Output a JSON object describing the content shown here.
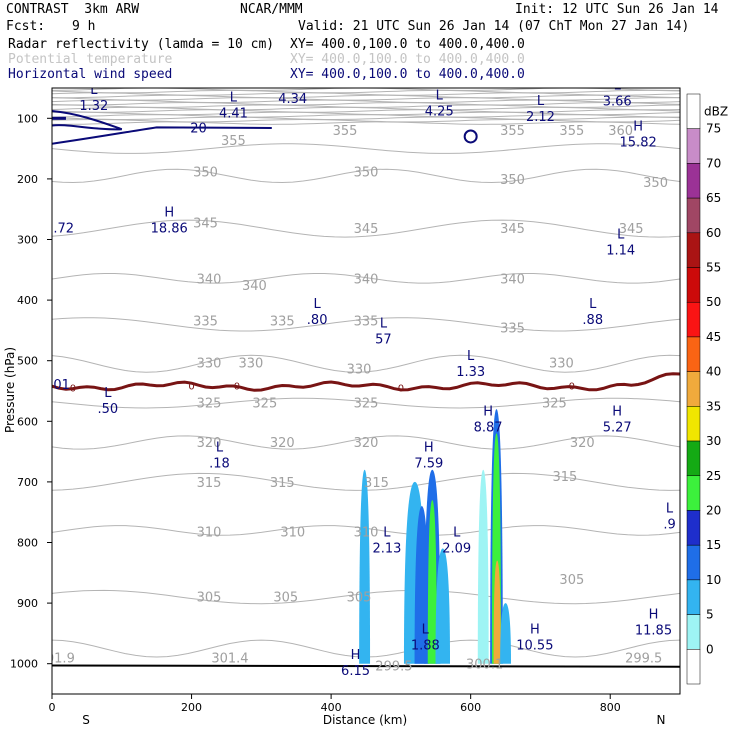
{
  "header": {
    "left_title": "CONTRAST  3km ARW",
    "center_title": "NCAR/MMM",
    "init": "Init: 12 UTC Sun 26 Jan 14",
    "fcst_label": "Fcst:",
    "fcst_value": "9 h",
    "valid": "Valid: 21 UTC Sun 26 Jan 14 (07 ChT Mon 27 Jan 14)",
    "fields": [
      {
        "name": "Radar reflectivity (lamda = 10 cm)",
        "xy": "XY= 400.0,100.0 to 400.0,400.0"
      },
      {
        "name": "Potential temperature",
        "xy": "XY= 400.0,100.0 to 400.0,400.0"
      },
      {
        "name": "Horizontal wind speed",
        "xy": "XY= 400.0,100.0 to 400.0,400.0"
      }
    ]
  },
  "colorbar": {
    "unit": "dBZ",
    "levels": [
      0,
      5,
      10,
      15,
      20,
      25,
      30,
      35,
      40,
      45,
      50,
      55,
      60,
      65,
      70,
      75
    ],
    "colors": [
      "#ffffff",
      "#9ef4f4",
      "#33b4f0",
      "#1f6ee8",
      "#1e2ecc",
      "#3cf03c",
      "#14aa14",
      "#f0e600",
      "#f0aa3c",
      "#fa6414",
      "#fa1414",
      "#cc0a0a",
      "#aa1414",
      "#a04664",
      "#9b3296",
      "#c88cc8"
    ]
  },
  "chart_data": {
    "type": "vertical-cross-section",
    "xlabel": "Distance (km)",
    "ylabel": "Pressure (hPa)",
    "xlim": [
      0,
      900
    ],
    "ylim": [
      1050,
      50
    ],
    "x_ticks": [
      0,
      200,
      400,
      600,
      800
    ],
    "y_ticks": [
      100,
      200,
      300,
      400,
      500,
      600,
      700,
      800,
      900,
      1000
    ],
    "x_end_labels": {
      "left": "S",
      "right": "N"
    },
    "theta_labels": [
      {
        "x": 260,
        "p": 136,
        "text": "355"
      },
      {
        "x": 420,
        "p": 119,
        "text": "355"
      },
      {
        "x": 660,
        "p": 119,
        "text": "355"
      },
      {
        "x": 745,
        "p": 119,
        "text": "355"
      },
      {
        "x": 815,
        "p": 119,
        "text": "360"
      },
      {
        "x": 220,
        "p": 188,
        "text": "350"
      },
      {
        "x": 450,
        "p": 188,
        "text": "350"
      },
      {
        "x": 660,
        "p": 200,
        "text": "350"
      },
      {
        "x": 865,
        "p": 205,
        "text": "350"
      },
      {
        "x": 220,
        "p": 272,
        "text": "345"
      },
      {
        "x": 450,
        "p": 281,
        "text": "345"
      },
      {
        "x": 660,
        "p": 281,
        "text": "345"
      },
      {
        "x": 830,
        "p": 281,
        "text": "345"
      },
      {
        "x": 225,
        "p": 364,
        "text": "340"
      },
      {
        "x": 290,
        "p": 375,
        "text": "340"
      },
      {
        "x": 450,
        "p": 364,
        "text": "340"
      },
      {
        "x": 660,
        "p": 364,
        "text": "340"
      },
      {
        "x": 220,
        "p": 434,
        "text": "335"
      },
      {
        "x": 330,
        "p": 434,
        "text": "335"
      },
      {
        "x": 450,
        "p": 434,
        "text": "335"
      },
      {
        "x": 660,
        "p": 445,
        "text": "335"
      },
      {
        "x": 225,
        "p": 503,
        "text": "330"
      },
      {
        "x": 285,
        "p": 503,
        "text": "330"
      },
      {
        "x": 440,
        "p": 513,
        "text": "330"
      },
      {
        "x": 730,
        "p": 503,
        "text": "330"
      },
      {
        "x": 225,
        "p": 569,
        "text": "325"
      },
      {
        "x": 305,
        "p": 569,
        "text": "325"
      },
      {
        "x": 450,
        "p": 569,
        "text": "325"
      },
      {
        "x": 720,
        "p": 569,
        "text": "325"
      },
      {
        "x": 225,
        "p": 634,
        "text": "320"
      },
      {
        "x": 330,
        "p": 634,
        "text": "320"
      },
      {
        "x": 450,
        "p": 634,
        "text": "320"
      },
      {
        "x": 760,
        "p": 634,
        "text": "320"
      },
      {
        "x": 225,
        "p": 700,
        "text": "315"
      },
      {
        "x": 330,
        "p": 700,
        "text": "315"
      },
      {
        "x": 465,
        "p": 700,
        "text": "315"
      },
      {
        "x": 735,
        "p": 690,
        "text": "315"
      },
      {
        "x": 225,
        "p": 782,
        "text": "310"
      },
      {
        "x": 345,
        "p": 782,
        "text": "310"
      },
      {
        "x": 450,
        "p": 782,
        "text": "310"
      },
      {
        "x": 225,
        "p": 889,
        "text": "305"
      },
      {
        "x": 335,
        "p": 889,
        "text": "305"
      },
      {
        "x": 440,
        "p": 889,
        "text": "305"
      },
      {
        "x": 745,
        "p": 860,
        "text": "305"
      },
      {
        "x": 255,
        "p": 990,
        "text": "301.4"
      },
      {
        "x": 12,
        "p": 990,
        "text": "01.9"
      },
      {
        "x": 490,
        "p": 1003,
        "text": "299.5"
      },
      {
        "x": 620,
        "p": 1000,
        "text": "300.1"
      },
      {
        "x": 848,
        "p": 990,
        "text": "299.5"
      }
    ],
    "extrema": [
      {
        "x": 60,
        "p": 70,
        "type": "L",
        "value": "1.32"
      },
      {
        "x": 260,
        "p": 82,
        "type": "L",
        "value": "4.41"
      },
      {
        "x": 345,
        "p": 58,
        "type": "L",
        "value": "4.34"
      },
      {
        "x": 555,
        "p": 79,
        "type": "L",
        "value": "4.25"
      },
      {
        "x": 700,
        "p": 88,
        "type": "L",
        "value": "2.12"
      },
      {
        "x": 810,
        "p": 62,
        "type": "L",
        "value": "3.66"
      },
      {
        "x": 840,
        "p": 130,
        "type": "H",
        "value": "15.82"
      },
      {
        "x": 168,
        "p": 272,
        "type": "H",
        "value": "18.86"
      },
      {
        "x": 2,
        "p": 272,
        "type": "",
        "value": ".72"
      },
      {
        "x": 815,
        "p": 308,
        "type": "L",
        "value": "1.14"
      },
      {
        "x": 380,
        "p": 423,
        "type": "L",
        "value": ".80"
      },
      {
        "x": 475,
        "p": 455,
        "type": "L",
        "value": "57"
      },
      {
        "x": 775,
        "p": 423,
        "type": "L",
        "value": ".88"
      },
      {
        "x": 600,
        "p": 509,
        "type": "L",
        "value": "1.33"
      },
      {
        "x": 2,
        "p": 530,
        "type": "",
        "value": "01"
      },
      {
        "x": 80,
        "p": 570,
        "type": "L",
        "value": ".50"
      },
      {
        "x": 625,
        "p": 600,
        "type": "H",
        "value": "8.87"
      },
      {
        "x": 810,
        "p": 600,
        "type": "H",
        "value": "5.27"
      },
      {
        "x": 240,
        "p": 660,
        "type": "L",
        "value": ".18"
      },
      {
        "x": 540,
        "p": 660,
        "type": "H",
        "value": "7.59"
      },
      {
        "x": 480,
        "p": 800,
        "type": "L",
        "value": "2.13"
      },
      {
        "x": 580,
        "p": 800,
        "type": "L",
        "value": "2.09"
      },
      {
        "x": 885,
        "p": 760,
        "type": "L",
        "value": ".9"
      },
      {
        "x": 535,
        "p": 960,
        "type": "L",
        "value": "1.88"
      },
      {
        "x": 692,
        "p": 960,
        "type": "H",
        "value": "10.55"
      },
      {
        "x": 862,
        "p": 935,
        "type": "H",
        "value": "11.85"
      },
      {
        "x": 435,
        "p": 1002,
        "type": "H",
        "value": "6.15"
      }
    ],
    "jet_contour_label": {
      "x": 210,
      "p": 115,
      "text": "20"
    },
    "freezing_level_labels": [
      {
        "x": 30,
        "p": 544,
        "text": "0"
      },
      {
        "x": 200,
        "p": 541,
        "text": "0"
      },
      {
        "x": 265,
        "p": 541,
        "text": "0"
      },
      {
        "x": 500,
        "p": 544,
        "text": "0"
      },
      {
        "x": 745,
        "p": 541,
        "text": "0"
      }
    ],
    "reflectivity_cells": [
      {
        "x": 448,
        "p_top": 680,
        "p_bot": 1000,
        "halfwidth": 6,
        "dbz": 10
      },
      {
        "x": 520,
        "p_top": 700,
        "p_bot": 1000,
        "halfwidth": 12,
        "dbz": 10
      },
      {
        "x": 530,
        "p_top": 740,
        "p_bot": 1000,
        "halfwidth": 8,
        "dbz": 15
      },
      {
        "x": 545,
        "p_top": 680,
        "p_bot": 1000,
        "halfwidth": 9,
        "dbz": 15
      },
      {
        "x": 545,
        "p_top": 730,
        "p_bot": 1000,
        "halfwidth": 5,
        "dbz": 25
      },
      {
        "x": 560,
        "p_top": 810,
        "p_bot": 1000,
        "halfwidth": 8,
        "dbz": 10
      },
      {
        "x": 618,
        "p_top": 680,
        "p_bot": 1000,
        "halfwidth": 6,
        "dbz": 5
      },
      {
        "x": 637,
        "p_top": 580,
        "p_bot": 1000,
        "halfwidth": 7,
        "dbz": 15
      },
      {
        "x": 637,
        "p_top": 620,
        "p_bot": 1000,
        "halfwidth": 5,
        "dbz": 25
      },
      {
        "x": 638,
        "p_top": 830,
        "p_bot": 1000,
        "halfwidth": 4,
        "dbz": 40
      },
      {
        "x": 650,
        "p_top": 900,
        "p_bot": 1000,
        "halfwidth": 6,
        "dbz": 10
      }
    ]
  }
}
